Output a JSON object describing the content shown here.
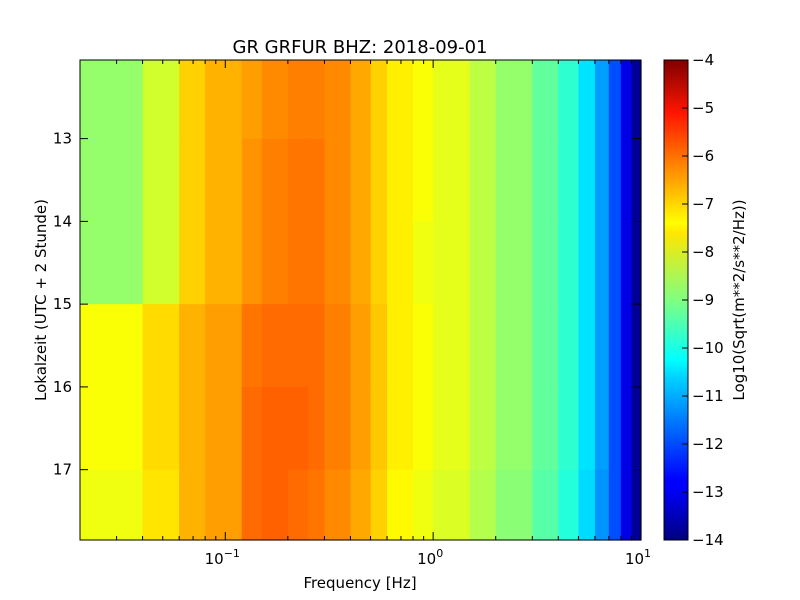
{
  "chart_data": {
    "type": "heatmap",
    "title": "GR GRFUR BHZ: 2018-09-01",
    "xlabel": "Frequency [Hz]",
    "ylabel": "Lokalzeit (UTC + 2 Stunde)",
    "x_scale": "log",
    "xlim": [
      0.02,
      10
    ],
    "x_ticks": [
      {
        "value": 0.1,
        "base": "10",
        "exp": "−1"
      },
      {
        "value": 1,
        "base": "10",
        "exp": "0"
      },
      {
        "value": 10,
        "base": "10",
        "exp": "1"
      }
    ],
    "ylim": [
      12.05,
      17.85
    ],
    "y_inverted": true,
    "y_ticks": [
      13,
      14,
      15,
      16,
      17
    ],
    "grid": false,
    "colormap": "jet",
    "colorbar": {
      "label": "Log10(Sqrt(m**2/s**2/Hz))",
      "range": [
        -14,
        -4
      ],
      "ticks": [
        -4,
        -5,
        -6,
        -7,
        -8,
        -9,
        -10,
        -11,
        -12,
        -13,
        -14
      ],
      "tick_labels": [
        "−4",
        "−5",
        "−6",
        "−7",
        "−8",
        "−9",
        "−10",
        "−11",
        "−12",
        "−13",
        "−14"
      ]
    },
    "frequency_bins": [
      0.02,
      0.04,
      0.06,
      0.08,
      0.12,
      0.15,
      0.2,
      0.25,
      0.3,
      0.4,
      0.5,
      0.6,
      0.8,
      1.0,
      1.5,
      2.0,
      3.0,
      4.0,
      5.0,
      6.0,
      7.0,
      8.0,
      9.0,
      10.0
    ],
    "time_bins": [
      12.05,
      13.0,
      14.0,
      15.0,
      16.0,
      17.0,
      17.85
    ],
    "values": [
      [
        -8.8,
        -8.2,
        -7.3,
        -7.0,
        -6.8,
        -6.6,
        -6.5,
        -6.5,
        -6.6,
        -6.9,
        -7.3,
        -7.6,
        -7.8,
        -8.0,
        -8.4,
        -8.8,
        -9.3,
        -9.8,
        -10.5,
        -11.2,
        -12.0,
        -13.0,
        -13.8
      ],
      [
        -8.8,
        -8.2,
        -7.3,
        -7.0,
        -6.7,
        -6.5,
        -6.4,
        -6.4,
        -6.6,
        -6.9,
        -7.3,
        -7.6,
        -7.8,
        -8.0,
        -8.4,
        -8.8,
        -9.3,
        -9.8,
        -10.5,
        -11.2,
        -12.0,
        -13.0,
        -13.8
      ],
      [
        -8.8,
        -8.2,
        -7.3,
        -7.0,
        -6.7,
        -6.5,
        -6.4,
        -6.4,
        -6.6,
        -6.9,
        -7.3,
        -7.6,
        -7.9,
        -8.0,
        -8.4,
        -8.8,
        -9.3,
        -9.8,
        -10.5,
        -11.2,
        -12.0,
        -13.0,
        -13.8
      ],
      [
        -7.8,
        -7.4,
        -7.0,
        -6.8,
        -6.4,
        -6.3,
        -6.3,
        -6.3,
        -6.5,
        -6.8,
        -7.2,
        -7.6,
        -7.8,
        -8.0,
        -8.4,
        -8.8,
        -9.3,
        -9.8,
        -10.5,
        -11.2,
        -12.0,
        -13.0,
        -13.8
      ],
      [
        -7.8,
        -7.4,
        -7.0,
        -6.8,
        -6.3,
        -6.2,
        -6.2,
        -6.3,
        -6.5,
        -6.8,
        -7.2,
        -7.6,
        -7.8,
        -8.0,
        -8.4,
        -8.8,
        -9.3,
        -9.8,
        -10.5,
        -11.2,
        -12.0,
        -13.0,
        -13.8
      ],
      [
        -7.9,
        -7.5,
        -7.0,
        -6.8,
        -6.3,
        -6.2,
        -6.3,
        -6.4,
        -6.6,
        -6.9,
        -7.3,
        -7.7,
        -7.9,
        -8.1,
        -8.5,
        -8.9,
        -9.4,
        -9.9,
        -10.6,
        -11.3,
        -12.0,
        -13.0,
        -13.8
      ]
    ]
  }
}
